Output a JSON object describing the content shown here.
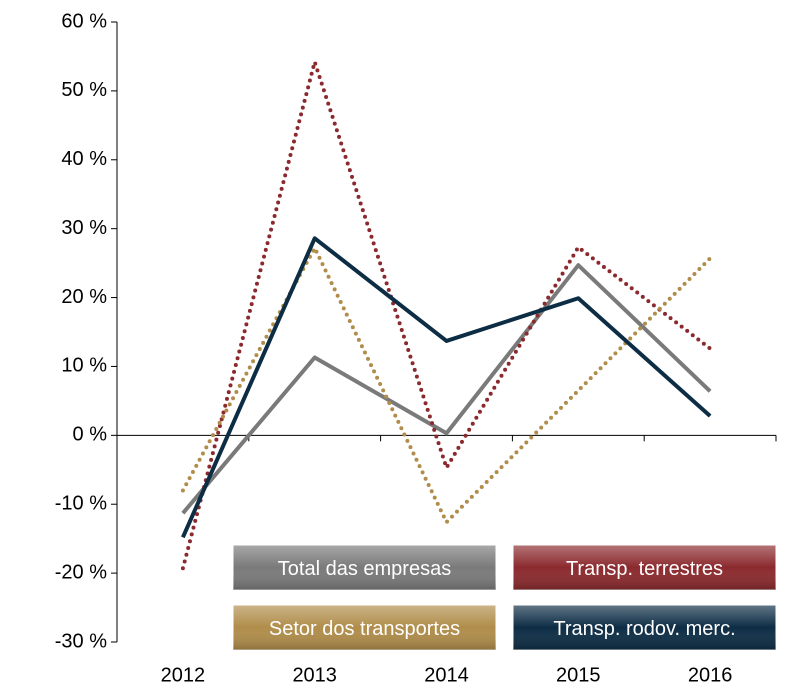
{
  "chart_data": {
    "type": "line",
    "categories": [
      "2012",
      "2013",
      "2014",
      "2015",
      "2016"
    ],
    "series": [
      {
        "name": "Total das empresas",
        "color": "#7a7a7a",
        "style": "solid",
        "values": [
          -11.3,
          11.3,
          0.3,
          24.7,
          6.4
        ]
      },
      {
        "name": "Transp. terrestres",
        "color": "#8b2a2e",
        "style": "dotted",
        "values": [
          -19.3,
          54.2,
          -4.7,
          27.3,
          12.6
        ]
      },
      {
        "name": "Setor dos transportes",
        "color": "#b08d4a",
        "style": "dotted",
        "values": [
          -8,
          27.2,
          -12.6,
          6.5,
          25.7
        ]
      },
      {
        "name": "Transp. rodov. merc.",
        "color": "#0d2d45",
        "style": "solid",
        "values": [
          -14.8,
          28.6,
          13.7,
          19.9,
          2.8
        ]
      }
    ],
    "ylim": [
      -30,
      60
    ],
    "yticks": [
      {
        "value": -30,
        "label": "-30 %"
      },
      {
        "value": -20,
        "label": "-20 %"
      },
      {
        "value": -10,
        "label": "-10 %"
      },
      {
        "value": 0,
        "label": "0 %"
      },
      {
        "value": 10,
        "label": "10 %"
      },
      {
        "value": 20,
        "label": "20 %"
      },
      {
        "value": 30,
        "label": "30 %"
      },
      {
        "value": 40,
        "label": "40 %"
      },
      {
        "value": 50,
        "label": "50 %"
      },
      {
        "value": 60,
        "label": "60 %"
      }
    ],
    "legend": "bottom-right"
  }
}
